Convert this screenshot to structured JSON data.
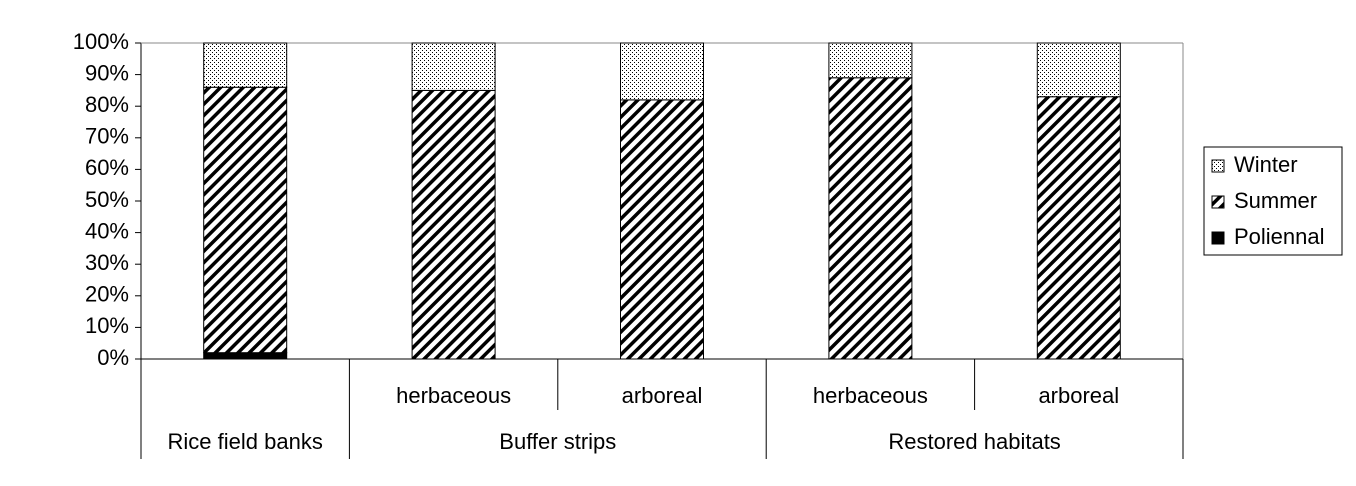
{
  "chart_data": {
    "type": "stacked_bar",
    "groups": [
      {
        "name": "Rice field banks",
        "categories": [
          null
        ]
      },
      {
        "name": "Buffer strips",
        "categories": [
          "herbaceous",
          "arboreal"
        ]
      },
      {
        "name": "Restored habitats",
        "categories": [
          "herbaceous",
          "arboreal"
        ]
      }
    ],
    "series": [
      {
        "name": "Winter",
        "color": "#000000",
        "pattern": "dots",
        "values": [
          14,
          15,
          18,
          11,
          17
        ]
      },
      {
        "name": "Summer",
        "color": "#000000",
        "pattern": "hatch",
        "values": [
          84,
          85,
          82,
          89,
          83
        ]
      },
      {
        "name": "Poliennal",
        "color": "#000000",
        "pattern": "solid",
        "values": [
          2,
          0,
          0,
          0,
          0
        ]
      }
    ],
    "ylim": [
      0,
      100
    ],
    "yticks": [
      {
        "value": 0,
        "label": "0%"
      },
      {
        "value": 10,
        "label": "10%"
      },
      {
        "value": 20,
        "label": "20%"
      },
      {
        "value": 30,
        "label": "30%"
      },
      {
        "value": 40,
        "label": "40%"
      },
      {
        "value": 50,
        "label": "50%"
      },
      {
        "value": 60,
        "label": "60%"
      },
      {
        "value": 70,
        "label": "70%"
      },
      {
        "value": 80,
        "label": "80%"
      },
      {
        "value": 90,
        "label": "90%"
      },
      {
        "value": 100,
        "label": "100%"
      }
    ],
    "legend": "right"
  }
}
